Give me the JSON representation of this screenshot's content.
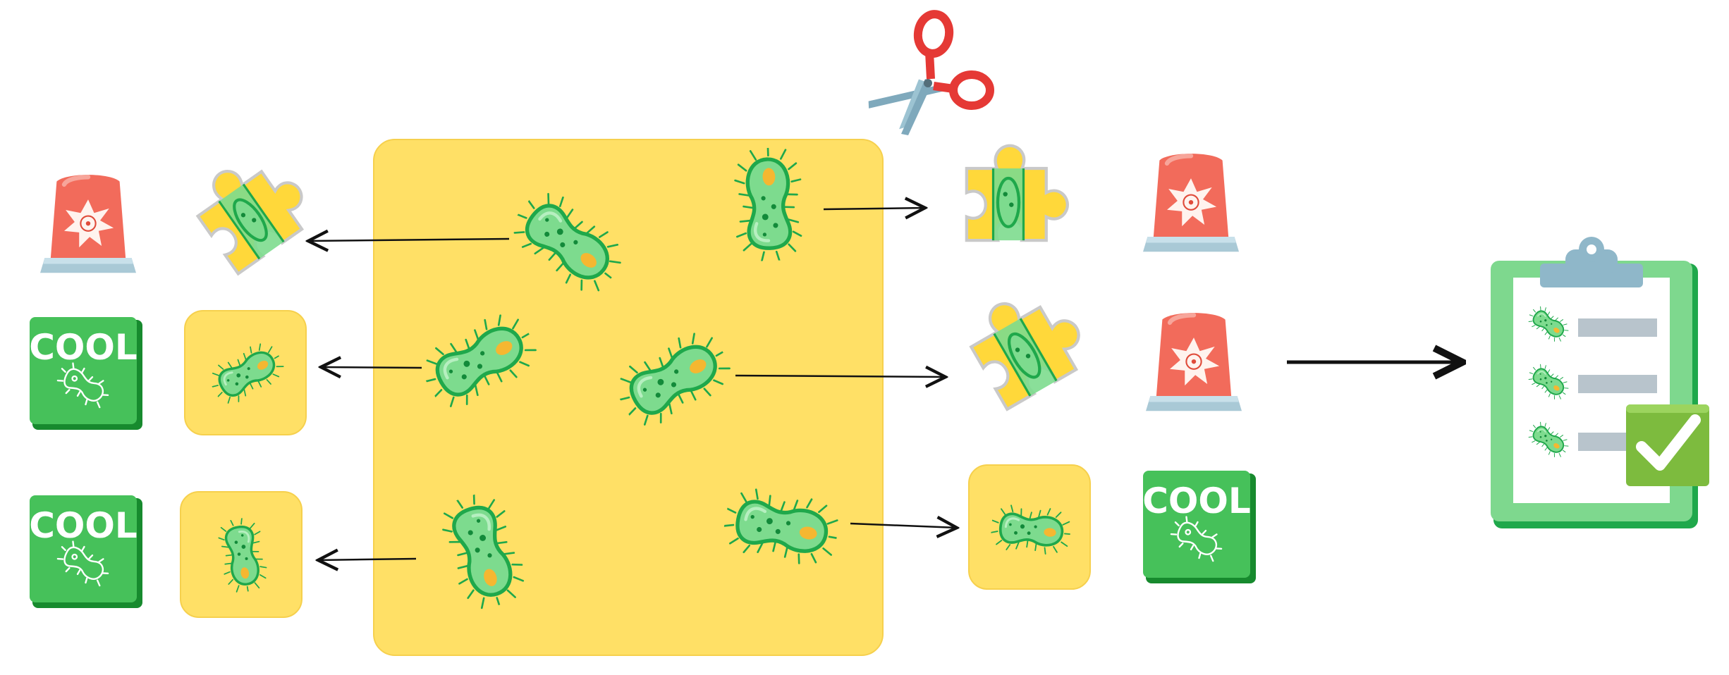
{
  "labels": {
    "cool_badges": [
      "COOL",
      "COOL",
      "COOL"
    ]
  },
  "icons": {
    "bacterium": "bacterium-icon",
    "puzzle": "puzzle-piece-icon",
    "alarm": "siren-icon",
    "cool_badge": "cool-badge-icon",
    "scissors": "scissors-icon",
    "clipboard": "clipboard-checklist-icon",
    "check": "check-mark-icon"
  },
  "colors": {
    "panel_yellow": "#FFE066",
    "tile_yellow": "#FFE066",
    "bacterium_body": "#7DDB8E",
    "bacterium_outline": "#1FA84B",
    "bacterium_spot": "#F5B731",
    "siren_red": "#F26B5B",
    "siren_base": "#A9C9D6",
    "cool_green": "#3FBF55",
    "clipboard_green": "#7ED88E",
    "check_green": "#7DBB3E",
    "scissor_handle": "#E53935",
    "arrow": "#111111"
  }
}
